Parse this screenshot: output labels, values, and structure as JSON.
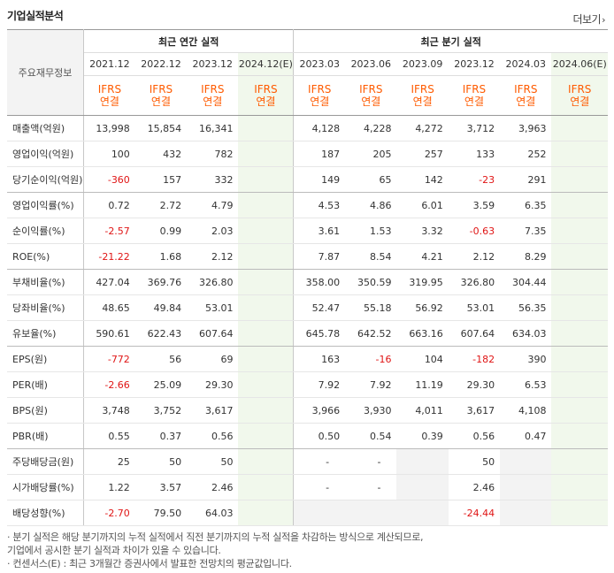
{
  "title": "기업실적분석",
  "more_label": "더보기",
  "more_icon": "chevron-right-icon",
  "colors": {
    "negative": "#e01515",
    "standard": "#ff5b00",
    "estimate_bg": "#f1f8ec"
  },
  "groups": {
    "annual": "최근 연간 실적",
    "quarter": "최근 분기 실적"
  },
  "row_header": "주요재무정보",
  "periods": [
    "2021.12",
    "2022.12",
    "2023.12",
    "2024.12(E)",
    "2023.03",
    "2023.06",
    "2023.09",
    "2023.12",
    "2024.03",
    "2024.06(E)"
  ],
  "standard": {
    "line1": "IFRS",
    "line2": "연결"
  },
  "rows": [
    {
      "label": "매출액(억원)",
      "values": [
        "13,998",
        "15,854",
        "16,341",
        "",
        "4,128",
        "4,228",
        "4,272",
        "3,712",
        "3,963",
        ""
      ]
    },
    {
      "label": "영업이익(억원)",
      "values": [
        "100",
        "432",
        "782",
        "",
        "187",
        "205",
        "257",
        "133",
        "252",
        ""
      ]
    },
    {
      "label": "당기순이익(억원)",
      "values": [
        "-360",
        "157",
        "332",
        "",
        "149",
        "65",
        "142",
        "-23",
        "291",
        ""
      ]
    },
    {
      "label": "영업이익률(%)",
      "values": [
        "0.72",
        "2.72",
        "4.79",
        "",
        "4.53",
        "4.86",
        "6.01",
        "3.59",
        "6.35",
        ""
      ]
    },
    {
      "label": "순이익률(%)",
      "values": [
        "-2.57",
        "0.99",
        "2.03",
        "",
        "3.61",
        "1.53",
        "3.32",
        "-0.63",
        "7.35",
        ""
      ]
    },
    {
      "label": "ROE(%)",
      "values": [
        "-21.22",
        "1.68",
        "2.12",
        "",
        "7.87",
        "8.54",
        "4.21",
        "2.12",
        "8.29",
        ""
      ]
    },
    {
      "label": "부채비율(%)",
      "values": [
        "427.04",
        "369.76",
        "326.80",
        "",
        "358.00",
        "350.59",
        "319.95",
        "326.80",
        "304.44",
        ""
      ]
    },
    {
      "label": "당좌비율(%)",
      "values": [
        "48.65",
        "49.84",
        "53.01",
        "",
        "52.47",
        "55.18",
        "56.92",
        "53.01",
        "56.35",
        ""
      ]
    },
    {
      "label": "유보율(%)",
      "values": [
        "590.61",
        "622.43",
        "607.64",
        "",
        "645.78",
        "642.52",
        "663.16",
        "607.64",
        "634.03",
        ""
      ]
    },
    {
      "label": "EPS(원)",
      "values": [
        "-772",
        "56",
        "69",
        "",
        "163",
        "-16",
        "104",
        "-182",
        "390",
        ""
      ]
    },
    {
      "label": "PER(배)",
      "values": [
        "-2.66",
        "25.09",
        "29.30",
        "",
        "7.92",
        "7.92",
        "11.19",
        "29.30",
        "6.53",
        ""
      ]
    },
    {
      "label": "BPS(원)",
      "values": [
        "3,748",
        "3,752",
        "3,617",
        "",
        "3,966",
        "3,930",
        "4,011",
        "3,617",
        "4,108",
        ""
      ]
    },
    {
      "label": "PBR(배)",
      "values": [
        "0.55",
        "0.37",
        "0.56",
        "",
        "0.50",
        "0.54",
        "0.39",
        "0.56",
        "0.47",
        ""
      ]
    },
    {
      "label": "주당배당금(원)",
      "values": [
        "25",
        "50",
        "50",
        "",
        "-",
        "-",
        "",
        "50",
        "",
        ""
      ]
    },
    {
      "label": "시가배당률(%)",
      "values": [
        "1.22",
        "3.57",
        "2.46",
        "",
        "-",
        "-",
        "",
        "2.46",
        "",
        ""
      ]
    },
    {
      "label": "배당성향(%)",
      "values": [
        "-2.70",
        "79.50",
        "64.03",
        "",
        "",
        "",
        "",
        "-24.44",
        "",
        ""
      ]
    }
  ],
  "notes": [
    "· 분기 실적은 해당 분기까지의 누적 실적에서 직전 분기까지의 누적 실적을 차감하는 방식으로 계산되므로,",
    "  기업에서 공시한 분기 실적과 차이가 있을 수 있습니다.",
    "· 컨센서스(E) : 최근 3개월간 증권사에서 발표한 전망치의 평균값입니다."
  ]
}
